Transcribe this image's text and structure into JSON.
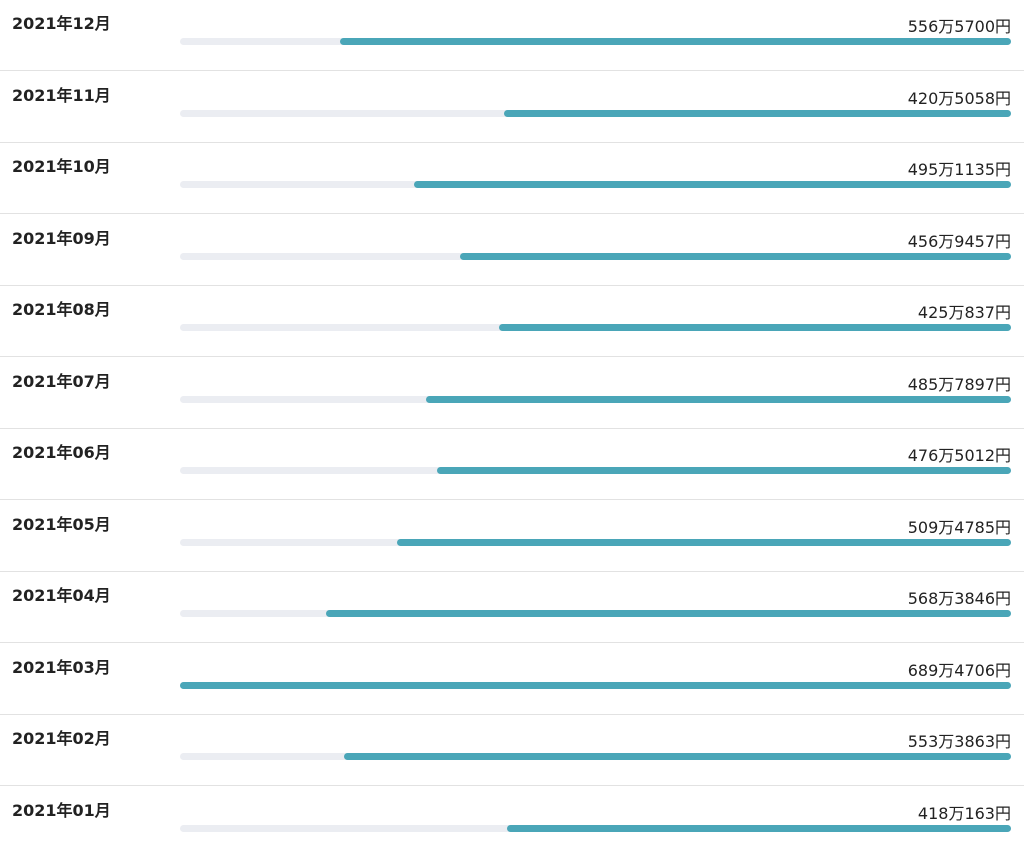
{
  "colors": {
    "bar_fill": "#4aa6b8",
    "bar_track": "#ebedf2",
    "divider": "#e2e2e2",
    "text": "#222222"
  },
  "chart_data": {
    "type": "bar",
    "orientation": "horizontal",
    "title": "",
    "xlabel": "",
    "ylabel": "",
    "unit": "円",
    "grid": false,
    "legend": "none",
    "xlim": [
      0,
      6894706
    ],
    "rows": [
      {
        "month": "2021年12月",
        "label": "556万5700円",
        "value": 5565700
      },
      {
        "month": "2021年11月",
        "label": "420万5058円",
        "value": 4205058
      },
      {
        "month": "2021年10月",
        "label": "495万1135円",
        "value": 4951135
      },
      {
        "month": "2021年09月",
        "label": "456万9457円",
        "value": 4569457
      },
      {
        "month": "2021年08月",
        "label": "425万837円",
        "value": 4250837
      },
      {
        "month": "2021年07月",
        "label": "485万7897円",
        "value": 4857897
      },
      {
        "month": "2021年06月",
        "label": "476万5012円",
        "value": 4765012
      },
      {
        "month": "2021年05月",
        "label": "509万4785円",
        "value": 5094785
      },
      {
        "month": "2021年04月",
        "label": "568万3846円",
        "value": 5683846
      },
      {
        "month": "2021年03月",
        "label": "689万4706円",
        "value": 6894706
      },
      {
        "month": "2021年02月",
        "label": "553万3863円",
        "value": 5533863
      },
      {
        "month": "2021年01月",
        "label": "418万163円",
        "value": 4180163
      }
    ]
  }
}
